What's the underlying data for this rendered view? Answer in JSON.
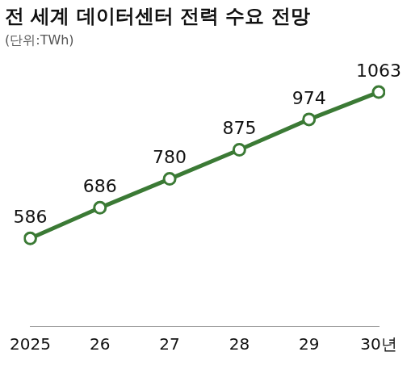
{
  "chart_data": {
    "type": "line",
    "title": "전 세계 데이터센터 전력 수요 전망",
    "subtitle": "(단위:TWh)",
    "categories": [
      "2025",
      "26",
      "27",
      "28",
      "29",
      "30년"
    ],
    "values": [
      586,
      686,
      780,
      875,
      974,
      1063
    ],
    "color": "#3b7a35",
    "marker": "circle",
    "line_style": "solid",
    "ylim": [
      300,
      1100
    ],
    "grid": false,
    "data_labels": true,
    "tick_labels": "x"
  }
}
